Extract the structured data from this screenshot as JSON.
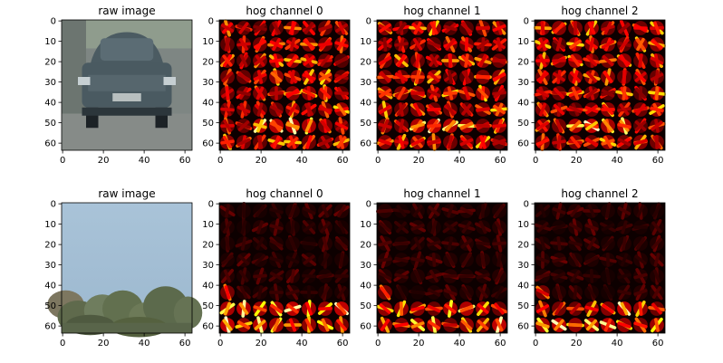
{
  "figure": {
    "tick_values": [
      0,
      20,
      40,
      60
    ],
    "tick_labels": [
      "0",
      "20",
      "40",
      "60"
    ],
    "y_tick_values": [
      0,
      10,
      20,
      30,
      40,
      50,
      60
    ],
    "y_tick_labels": [
      "0",
      "10",
      "20",
      "30",
      "40",
      "50",
      "60"
    ]
  },
  "chart_data": [
    {
      "type": "image",
      "title": "raw image",
      "content": "car",
      "xlim": [
        0,
        64
      ],
      "ylim": [
        64,
        0
      ]
    },
    {
      "type": "heatmap",
      "title": "hog channel 0",
      "variant": "car",
      "colormap": "hot",
      "cells": 8,
      "xlim": [
        0,
        64
      ],
      "ylim": [
        64,
        0
      ]
    },
    {
      "type": "heatmap",
      "title": "hog channel 1",
      "variant": "car",
      "colormap": "hot",
      "cells": 8,
      "xlim": [
        0,
        64
      ],
      "ylim": [
        64,
        0
      ]
    },
    {
      "type": "heatmap",
      "title": "hog channel 2",
      "variant": "car",
      "colormap": "hot",
      "cells": 8,
      "xlim": [
        0,
        64
      ],
      "ylim": [
        64,
        0
      ]
    },
    {
      "type": "image",
      "title": "raw image",
      "content": "sky-trees",
      "xlim": [
        0,
        64
      ],
      "ylim": [
        64,
        0
      ]
    },
    {
      "type": "heatmap",
      "title": "hog channel 0",
      "variant": "sky",
      "colormap": "hot",
      "cells": 8,
      "xlim": [
        0,
        64
      ],
      "ylim": [
        64,
        0
      ]
    },
    {
      "type": "heatmap",
      "title": "hog channel 1",
      "variant": "sky",
      "colormap": "hot",
      "cells": 8,
      "xlim": [
        0,
        64
      ],
      "ylim": [
        64,
        0
      ]
    },
    {
      "type": "heatmap",
      "title": "hog channel 2",
      "variant": "sky",
      "colormap": "hot",
      "cells": 8,
      "xlim": [
        0,
        64
      ],
      "ylim": [
        64,
        0
      ]
    }
  ]
}
